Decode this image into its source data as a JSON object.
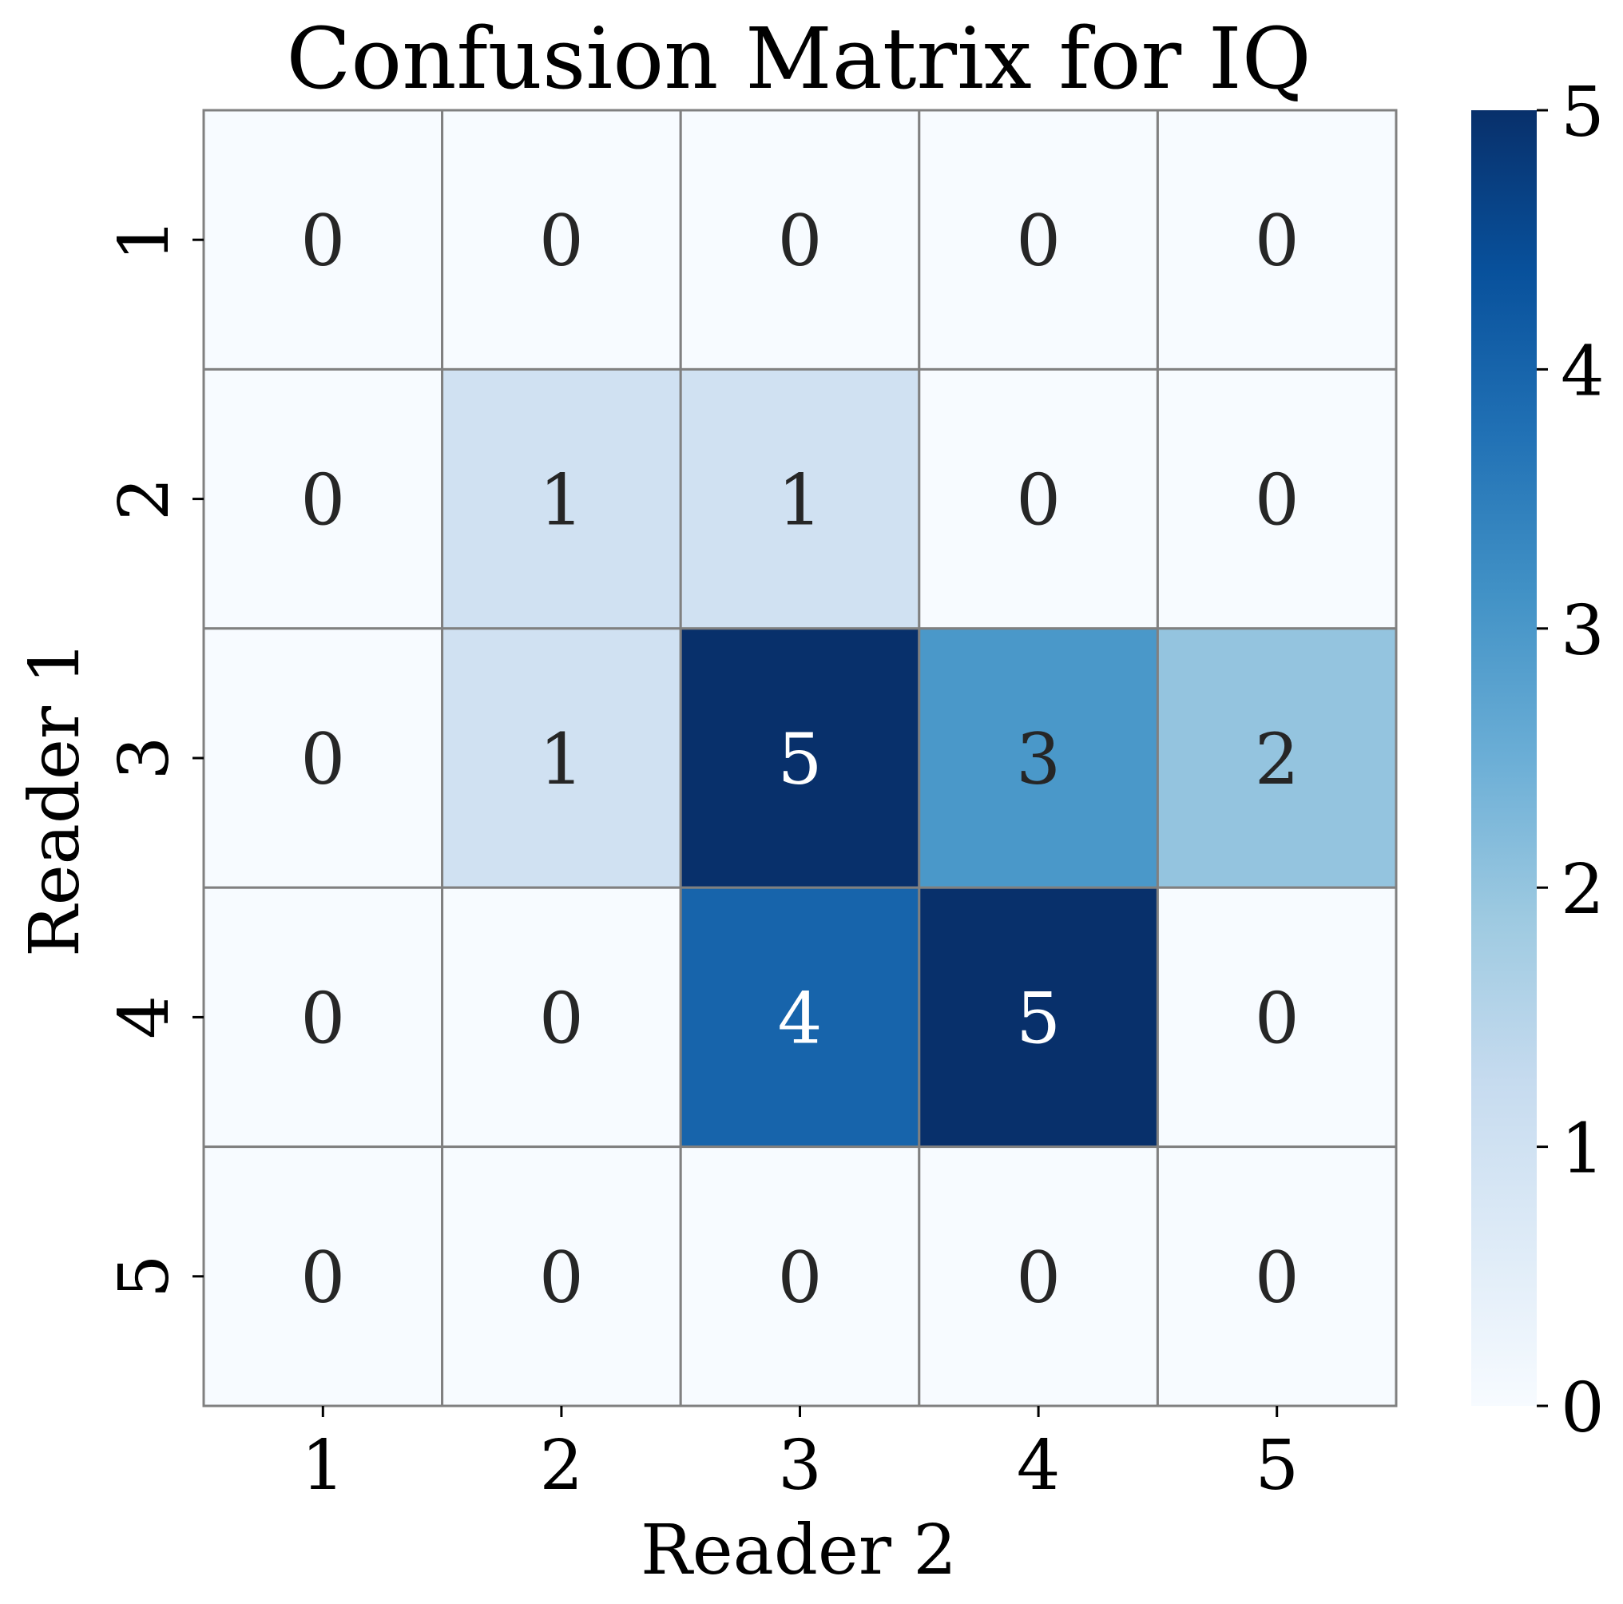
{
  "chart_data": {
    "type": "heatmap",
    "title": "Confusion Matrix for IQ",
    "xlabel": "Reader 2",
    "ylabel": "Reader 1",
    "x_categories": [
      "1",
      "2",
      "3",
      "4",
      "5"
    ],
    "y_categories": [
      "1",
      "2",
      "3",
      "4",
      "5"
    ],
    "values": [
      [
        0,
        0,
        0,
        0,
        0
      ],
      [
        0,
        1,
        1,
        0,
        0
      ],
      [
        0,
        1,
        5,
        3,
        2
      ],
      [
        0,
        0,
        4,
        5,
        0
      ],
      [
        0,
        0,
        0,
        0,
        0
      ]
    ],
    "colorbar": {
      "range": [
        0,
        5
      ],
      "ticks": [
        "0",
        "1",
        "2",
        "3",
        "4",
        "5"
      ],
      "colormap": "Blues"
    },
    "grid_line_color": "#808080"
  }
}
